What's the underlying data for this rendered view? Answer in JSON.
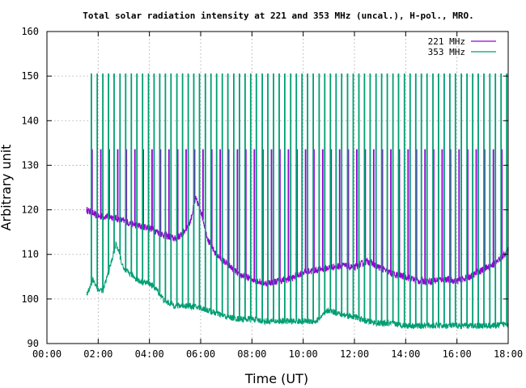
{
  "chart_data": {
    "type": "line",
    "title": "Total solar radiation intensity at 221 and 353 MHz (uncal.), H-pol., MRO.",
    "xlabel": "Time (UT)",
    "ylabel": "Arbitrary unit",
    "xlim_hours": [
      0,
      18
    ],
    "ylim": [
      90,
      160
    ],
    "x_ticks": [
      "00:00",
      "02:00",
      "04:00",
      "06:00",
      "08:00",
      "10:00",
      "12:00",
      "14:00",
      "16:00",
      "18:00"
    ],
    "y_ticks": [
      "90",
      "100",
      "110",
      "120",
      "130",
      "140",
      "150",
      "160"
    ],
    "grid": true,
    "legend_position": "top-right",
    "series": [
      {
        "name": "221 MHz",
        "color": "#9400d3",
        "x_hours": [
          1.55,
          2.0,
          2.5,
          3.0,
          3.5,
          4.0,
          4.5,
          5.0,
          5.3,
          5.6,
          5.8,
          6.0,
          6.3,
          6.6,
          7.0,
          7.5,
          8.0,
          8.5,
          9.0,
          9.5,
          10.0,
          10.5,
          11.0,
          11.5,
          12.0,
          12.5,
          13.0,
          13.5,
          14.0,
          14.5,
          15.0,
          15.5,
          16.0,
          16.5,
          17.0,
          17.5,
          18.0
        ],
        "values": [
          120,
          118.5,
          118.5,
          117.5,
          116.5,
          116,
          114.5,
          113.5,
          114.5,
          117.5,
          122.5,
          120,
          113,
          110,
          108,
          105.5,
          104.5,
          103.5,
          104,
          104.5,
          106,
          106.5,
          107,
          107.5,
          107,
          108.5,
          107,
          105.5,
          105,
          104,
          104,
          104.5,
          104,
          105,
          106.5,
          108,
          111
        ]
      },
      {
        "name": "353 MHz",
        "color": "#009e73",
        "x_hours": [
          1.55,
          1.8,
          2.0,
          2.2,
          2.5,
          2.7,
          3.0,
          3.3,
          3.6,
          4.0,
          4.3,
          4.6,
          5.0,
          5.5,
          6.0,
          6.5,
          7.0,
          7.5,
          8.0,
          8.5,
          9.0,
          9.5,
          10.0,
          10.5,
          11.0,
          11.5,
          12.0,
          12.5,
          13.0,
          13.5,
          14.0,
          14.5,
          15.0,
          15.5,
          16.0,
          16.5,
          17.0,
          17.5,
          18.0
        ],
        "values": [
          101,
          104.5,
          102,
          102,
          108,
          112.5,
          106.5,
          105.5,
          104,
          103.5,
          102,
          99.5,
          98.5,
          98.5,
          98,
          97,
          96,
          95.5,
          95.5,
          95,
          95,
          95,
          95,
          95,
          97.5,
          96.5,
          96,
          95,
          94.5,
          94.5,
          94,
          94,
          94,
          94,
          94,
          94,
          94,
          94,
          94.5
        ]
      }
    ]
  }
}
